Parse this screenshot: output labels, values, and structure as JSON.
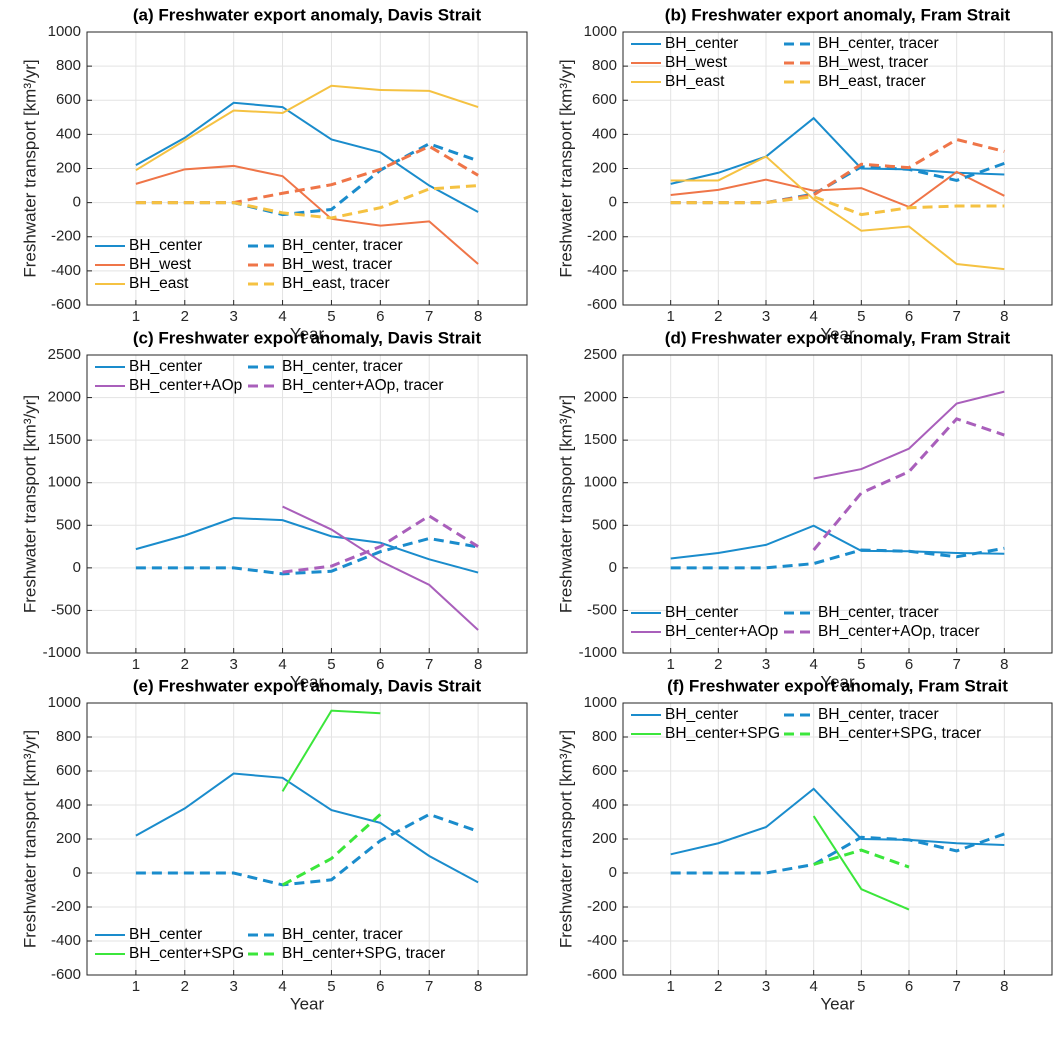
{
  "chart_data": [
    {
      "type": "line",
      "title": "(a) Freshwater export anomaly, Davis Strait",
      "x_label": "Year",
      "y_label": "Freshwater transport [km³/yr]",
      "x": [
        1,
        2,
        3,
        4,
        5,
        6,
        7,
        8
      ],
      "xlim": [
        0,
        9
      ],
      "xticks": [
        1,
        2,
        3,
        4,
        5,
        6,
        7,
        8
      ],
      "ylim": [
        -600,
        1000
      ],
      "yticks": [
        -600,
        -400,
        -200,
        0,
        200,
        400,
        600,
        800,
        1000
      ],
      "grid": true,
      "legend": "lower left",
      "series": [
        {
          "name": "BH_center",
          "color": "#1a8ccc",
          "dashed": false,
          "values": [
            220,
            380,
            585,
            560,
            370,
            295,
            100,
            -55
          ]
        },
        {
          "name": "BH_west",
          "color": "#ef7548",
          "dashed": false,
          "values": [
            110,
            195,
            215,
            155,
            -95,
            -135,
            -110,
            -360
          ]
        },
        {
          "name": "BH_east",
          "color": "#f5c242",
          "dashed": false,
          "values": [
            190,
            365,
            540,
            525,
            685,
            660,
            655,
            560
          ]
        },
        {
          "name": "BH_center, tracer",
          "color": "#1a8ccc",
          "dashed": true,
          "values": [
            0,
            0,
            0,
            -70,
            -40,
            190,
            345,
            245
          ]
        },
        {
          "name": "BH_west, tracer",
          "color": "#ef7548",
          "dashed": true,
          "values": [
            0,
            0,
            0,
            55,
            105,
            195,
            330,
            160
          ]
        },
        {
          "name": "BH_east, tracer",
          "color": "#f5c242",
          "dashed": true,
          "values": [
            0,
            0,
            0,
            -60,
            -90,
            -30,
            80,
            100
          ]
        }
      ]
    },
    {
      "type": "line",
      "title": "(b) Freshwater export anomaly, Fram Strait",
      "x_label": "Year",
      "y_label": "Freshwater transport [km³/yr]",
      "x": [
        1,
        2,
        3,
        4,
        5,
        6,
        7,
        8
      ],
      "xlim": [
        0,
        9
      ],
      "xticks": [
        1,
        2,
        3,
        4,
        5,
        6,
        7,
        8
      ],
      "ylim": [
        -600,
        1000
      ],
      "yticks": [
        -600,
        -400,
        -200,
        0,
        200,
        400,
        600,
        800,
        1000
      ],
      "grid": true,
      "legend": "upper left",
      "series": [
        {
          "name": "BH_center",
          "color": "#1a8ccc",
          "dashed": false,
          "values": [
            110,
            175,
            270,
            495,
            200,
            195,
            175,
            165
          ]
        },
        {
          "name": "BH_west",
          "color": "#ef7548",
          "dashed": false,
          "values": [
            45,
            75,
            135,
            70,
            85,
            -25,
            180,
            40
          ]
        },
        {
          "name": "BH_east",
          "color": "#f5c242",
          "dashed": false,
          "values": [
            130,
            130,
            270,
            20,
            -165,
            -140,
            -360,
            -390
          ]
        },
        {
          "name": "BH_center, tracer",
          "color": "#1a8ccc",
          "dashed": true,
          "values": [
            0,
            0,
            0,
            50,
            210,
            195,
            130,
            230
          ]
        },
        {
          "name": "BH_west, tracer",
          "color": "#ef7548",
          "dashed": true,
          "values": [
            0,
            0,
            0,
            45,
            225,
            205,
            370,
            300
          ]
        },
        {
          "name": "BH_east, tracer",
          "color": "#f5c242",
          "dashed": true,
          "values": [
            0,
            0,
            0,
            35,
            -70,
            -30,
            -20,
            -20
          ]
        }
      ]
    },
    {
      "type": "line",
      "title": "(c) Freshwater export anomaly, Davis Strait",
      "x_label": "Year",
      "y_label": "Freshwater transport [km³/yr]",
      "x": [
        1,
        2,
        3,
        4,
        5,
        6,
        7,
        8
      ],
      "xlim": [
        0,
        9
      ],
      "xticks": [
        1,
        2,
        3,
        4,
        5,
        6,
        7,
        8
      ],
      "ylim": [
        -1000,
        2500
      ],
      "yticks": [
        -1000,
        -500,
        0,
        500,
        1000,
        1500,
        2000,
        2500
      ],
      "grid": true,
      "legend": "upper left",
      "series": [
        {
          "name": "BH_center",
          "color": "#1a8ccc",
          "dashed": false,
          "values": [
            220,
            380,
            585,
            560,
            370,
            295,
            100,
            -55
          ]
        },
        {
          "name": "BH_center+AOp",
          "color": "#a95fbb",
          "dashed": false,
          "values": [
            null,
            null,
            null,
            720,
            450,
            80,
            -200,
            -730
          ]
        },
        {
          "name": "BH_center, tracer",
          "color": "#1a8ccc",
          "dashed": true,
          "values": [
            0,
            0,
            0,
            -70,
            -40,
            190,
            345,
            245
          ]
        },
        {
          "name": "BH_center+AOp, tracer",
          "color": "#a95fbb",
          "dashed": true,
          "values": [
            null,
            null,
            null,
            -50,
            20,
            250,
            610,
            250
          ]
        }
      ]
    },
    {
      "type": "line",
      "title": "(d) Freshwater export anomaly, Fram Strait",
      "x_label": "Year",
      "y_label": "Freshwater transport [km³/yr]",
      "x": [
        1,
        2,
        3,
        4,
        5,
        6,
        7,
        8
      ],
      "xlim": [
        0,
        9
      ],
      "xticks": [
        1,
        2,
        3,
        4,
        5,
        6,
        7,
        8
      ],
      "ylim": [
        -1000,
        2500
      ],
      "yticks": [
        -1000,
        -500,
        0,
        500,
        1000,
        1500,
        2000,
        2500
      ],
      "grid": true,
      "legend": "lower left",
      "series": [
        {
          "name": "BH_center",
          "color": "#1a8ccc",
          "dashed": false,
          "values": [
            110,
            175,
            270,
            495,
            200,
            195,
            175,
            165
          ]
        },
        {
          "name": "BH_center+AOp",
          "color": "#a95fbb",
          "dashed": false,
          "values": [
            null,
            null,
            null,
            1050,
            1160,
            1400,
            1930,
            2070
          ]
        },
        {
          "name": "BH_center, tracer",
          "color": "#1a8ccc",
          "dashed": true,
          "values": [
            0,
            0,
            0,
            50,
            210,
            195,
            130,
            230
          ]
        },
        {
          "name": "BH_center+AOp, tracer",
          "color": "#a95fbb",
          "dashed": true,
          "values": [
            null,
            null,
            null,
            210,
            880,
            1130,
            1750,
            1560
          ]
        }
      ]
    },
    {
      "type": "line",
      "title": "(e) Freshwater export anomaly, Davis Strait",
      "x_label": "Year",
      "y_label": "Freshwater transport [km³/yr]",
      "x": [
        1,
        2,
        3,
        4,
        5,
        6,
        7,
        8
      ],
      "xlim": [
        0,
        9
      ],
      "xticks": [
        1,
        2,
        3,
        4,
        5,
        6,
        7,
        8
      ],
      "ylim": [
        -600,
        1000
      ],
      "yticks": [
        -600,
        -400,
        -200,
        0,
        200,
        400,
        600,
        800,
        1000
      ],
      "grid": true,
      "legend": "lower left",
      "series": [
        {
          "name": "BH_center",
          "color": "#1a8ccc",
          "dashed": false,
          "values": [
            220,
            380,
            585,
            560,
            370,
            295,
            100,
            -55
          ]
        },
        {
          "name": "BH_center+SPG",
          "color": "#3be63b",
          "dashed": false,
          "values": [
            null,
            null,
            null,
            480,
            955,
            940,
            null,
            null
          ]
        },
        {
          "name": "BH_center, tracer",
          "color": "#1a8ccc",
          "dashed": true,
          "values": [
            0,
            0,
            0,
            -70,
            -40,
            190,
            345,
            245
          ]
        },
        {
          "name": "BH_center+SPG, tracer",
          "color": "#3be63b",
          "dashed": true,
          "values": [
            null,
            null,
            null,
            -70,
            85,
            345,
            null,
            null
          ]
        }
      ]
    },
    {
      "type": "line",
      "title": "(f) Freshwater export anomaly, Fram Strait",
      "x_label": "Year",
      "y_label": "Freshwater transport [km³/yr]",
      "x": [
        1,
        2,
        3,
        4,
        5,
        6,
        7,
        8
      ],
      "xlim": [
        0,
        9
      ],
      "xticks": [
        1,
        2,
        3,
        4,
        5,
        6,
        7,
        8
      ],
      "ylim": [
        -600,
        1000
      ],
      "yticks": [
        -600,
        -400,
        -200,
        0,
        200,
        400,
        600,
        800,
        1000
      ],
      "grid": true,
      "legend": "upper left",
      "series": [
        {
          "name": "BH_center",
          "color": "#1a8ccc",
          "dashed": false,
          "values": [
            110,
            175,
            270,
            495,
            200,
            195,
            175,
            165
          ]
        },
        {
          "name": "BH_center+SPG",
          "color": "#3be63b",
          "dashed": false,
          "values": [
            null,
            null,
            null,
            335,
            -95,
            -215,
            null,
            null
          ]
        },
        {
          "name": "BH_center, tracer",
          "color": "#1a8ccc",
          "dashed": true,
          "values": [
            0,
            0,
            0,
            50,
            210,
            195,
            130,
            230
          ]
        },
        {
          "name": "BH_center+SPG, tracer",
          "color": "#3be63b",
          "dashed": true,
          "values": [
            null,
            null,
            null,
            50,
            135,
            35,
            null,
            null
          ]
        }
      ]
    }
  ]
}
